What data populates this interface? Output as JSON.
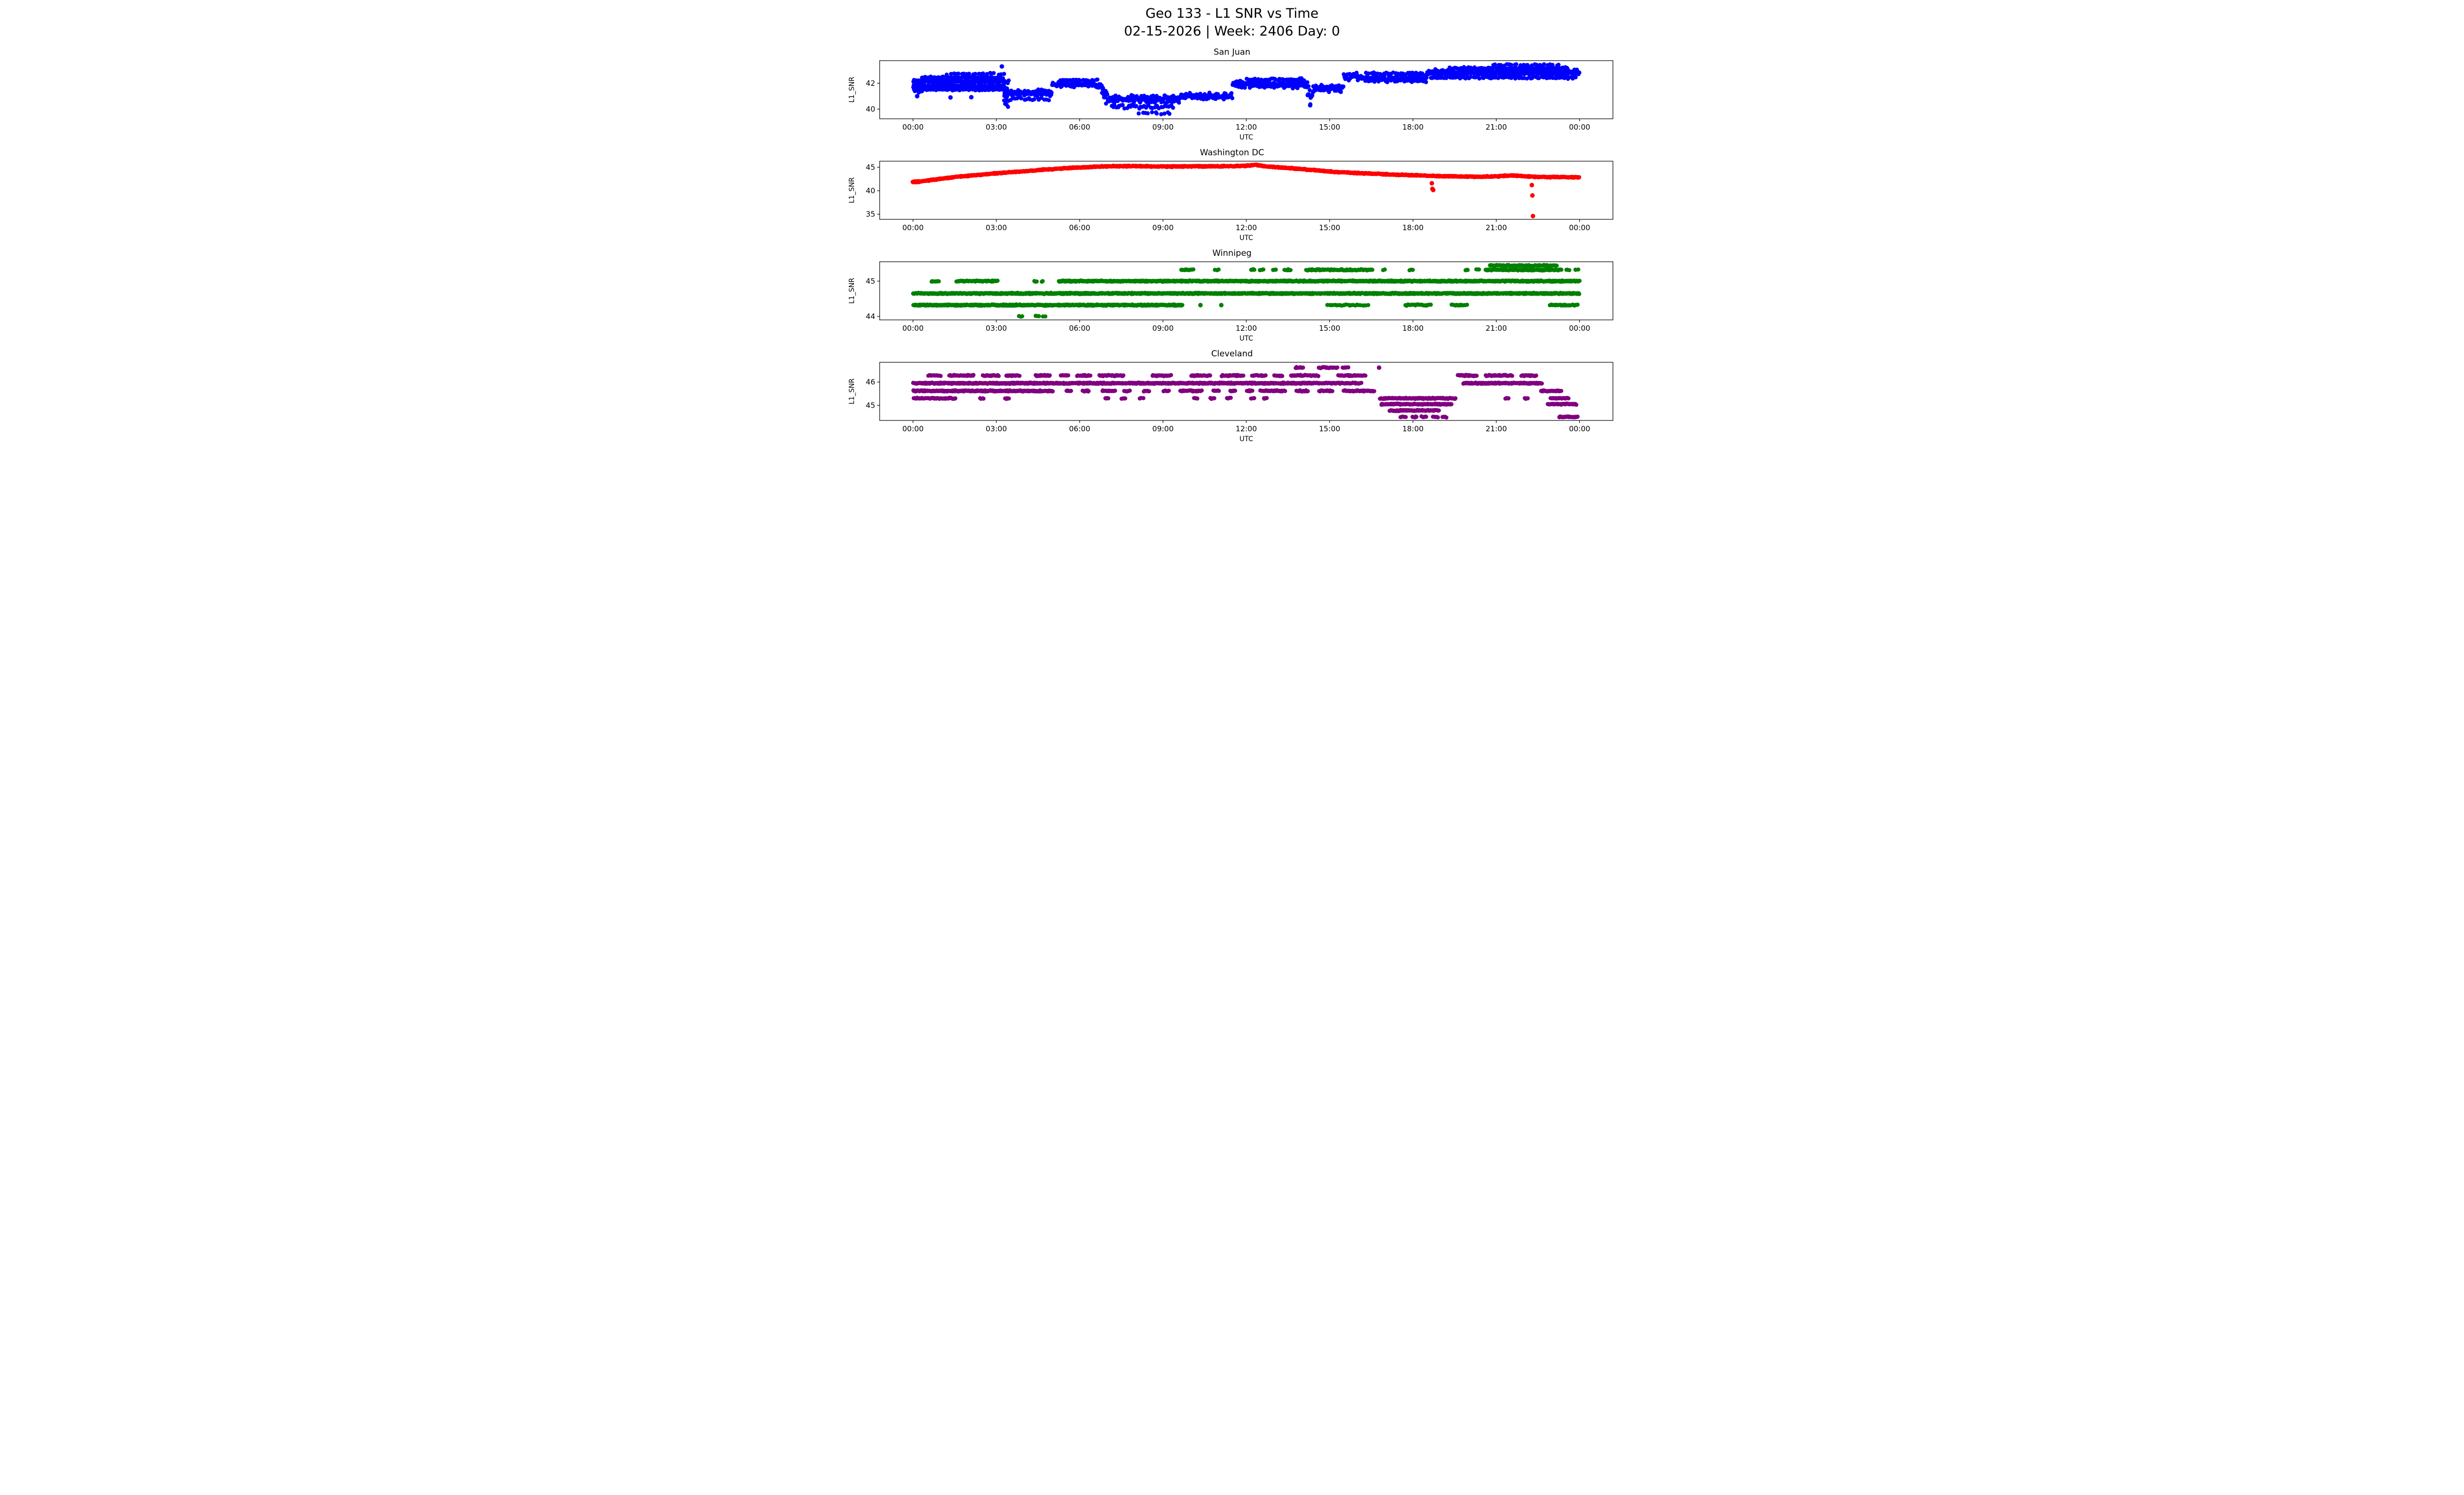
{
  "header": {
    "title_line1": "Geo 133 - L1 SNR vs Time",
    "title_line2": "02-15-2026 | Week: 2406 Day: 0"
  },
  "chart_data": [
    {
      "type": "scatter",
      "title": "San Juan",
      "color": "#0000ff",
      "xlabel": "UTC",
      "ylabel": "L1_SNR",
      "xlim": [
        -1.2,
        25.2
      ],
      "ylim": [
        39.25,
        43.75
      ],
      "x_tick_values": [
        0,
        3,
        6,
        9,
        12,
        15,
        18,
        21,
        24
      ],
      "x_tick_labels": [
        "00:00",
        "03:00",
        "06:00",
        "09:00",
        "12:00",
        "15:00",
        "18:00",
        "21:00",
        "00:00"
      ],
      "y_ticks": [
        40,
        42
      ],
      "grid": false,
      "legend": null,
      "segments": [
        [
          0,
          3.3,
          42.15,
          0.13,
          60
        ],
        [
          0,
          3.3,
          41.78,
          0.12,
          45
        ],
        [
          0,
          3.3,
          41.52,
          0.08,
          22
        ],
        [
          0.3,
          3.25,
          42.45,
          0.09,
          18
        ],
        [
          1.2,
          3.3,
          42.72,
          0.1,
          10
        ],
        [
          0.05,
          0.35,
          41.3,
          0.2,
          12
        ],
        [
          3.28,
          3.45,
          41.0,
          1.55,
          140
        ],
        [
          3.45,
          5.0,
          41.25,
          0.28,
          55
        ],
        [
          3.5,
          4.9,
          40.78,
          0.13,
          13
        ],
        [
          5.0,
          6.8,
          41.9,
          0.25,
          55
        ],
        [
          5.3,
          6.7,
          42.22,
          0.09,
          13
        ],
        [
          6.8,
          7.0,
          41.0,
          0.8,
          60
        ],
        [
          7.0,
          9.6,
          40.75,
          0.35,
          60
        ],
        [
          7.1,
          9.4,
          40.2,
          0.18,
          16
        ],
        [
          8.1,
          9.3,
          39.66,
          0.14,
          9
        ],
        [
          9.6,
          11.5,
          41.0,
          0.3,
          55
        ],
        [
          11.5,
          14.2,
          41.9,
          0.35,
          58
        ],
        [
          12.0,
          14.1,
          42.3,
          0.1,
          15
        ],
        [
          14.2,
          14.4,
          41.1,
          0.95,
          70
        ],
        [
          14.4,
          15.5,
          41.6,
          0.35,
          50
        ],
        [
          15.5,
          16.2,
          42.5,
          0.45,
          45
        ],
        [
          16.2,
          18.5,
          42.35,
          0.3,
          58
        ],
        [
          16.3,
          18.4,
          42.75,
          0.1,
          13
        ],
        [
          18.5,
          24,
          42.82,
          0.3,
          62
        ],
        [
          19.3,
          23.6,
          43.15,
          0.1,
          20
        ],
        [
          20.8,
          23.3,
          43.42,
          0.07,
          10
        ],
        [
          18.6,
          23.9,
          42.42,
          0.09,
          13
        ]
      ],
      "outliers": [
        [
          0.15,
          41.0
        ],
        [
          1.35,
          40.9
        ],
        [
          2.1,
          40.92
        ],
        [
          3.2,
          43.3
        ],
        [
          14.3,
          40.3
        ]
      ]
    },
    {
      "type": "scatter",
      "title": "Washington DC",
      "color": "#ff0000",
      "xlabel": "UTC",
      "ylabel": "L1_SNR",
      "xlim": [
        -1.2,
        25.2
      ],
      "ylim": [
        33.9,
        46.3
      ],
      "x_tick_values": [
        0,
        3,
        6,
        9,
        12,
        15,
        18,
        21,
        24
      ],
      "x_tick_labels": [
        "00:00",
        "03:00",
        "06:00",
        "09:00",
        "12:00",
        "15:00",
        "18:00",
        "21:00",
        "00:00"
      ],
      "y_ticks": [
        35,
        40,
        45
      ],
      "grid": false,
      "legend": null,
      "curve": [
        [
          0,
          41.85
        ],
        [
          0.3,
          42.0
        ],
        [
          0.7,
          42.3
        ],
        [
          1.0,
          42.55
        ],
        [
          1.5,
          42.9
        ],
        [
          2.0,
          43.2
        ],
        [
          2.5,
          43.45
        ],
        [
          3.0,
          43.7
        ],
        [
          3.5,
          43.95
        ],
        [
          4.0,
          44.15
        ],
        [
          4.5,
          44.4
        ],
        [
          5.0,
          44.6
        ],
        [
          5.5,
          44.8
        ],
        [
          6.0,
          44.95
        ],
        [
          6.5,
          45.1
        ],
        [
          7.0,
          45.2
        ],
        [
          7.5,
          45.25
        ],
        [
          8.0,
          45.25
        ],
        [
          8.5,
          45.2
        ],
        [
          9.0,
          45.15
        ],
        [
          9.5,
          45.15
        ],
        [
          10.0,
          45.2
        ],
        [
          10.5,
          45.2
        ],
        [
          11.0,
          45.2
        ],
        [
          11.5,
          45.25
        ],
        [
          12.0,
          45.3
        ],
        [
          12.2,
          45.45
        ],
        [
          12.35,
          45.55
        ],
        [
          12.5,
          45.35
        ],
        [
          12.8,
          45.15
        ],
        [
          13.0,
          45.05
        ],
        [
          13.5,
          44.85
        ],
        [
          14.0,
          44.6
        ],
        [
          14.5,
          44.35
        ],
        [
          15.0,
          44.1
        ],
        [
          15.5,
          43.9
        ],
        [
          16.0,
          43.75
        ],
        [
          16.5,
          43.65
        ],
        [
          17.0,
          43.5
        ],
        [
          17.5,
          43.4
        ],
        [
          18.0,
          43.3
        ],
        [
          18.5,
          43.2
        ],
        [
          19.0,
          43.1
        ],
        [
          19.5,
          43.05
        ],
        [
          20.0,
          43.0
        ],
        [
          20.5,
          43.0
        ],
        [
          21.0,
          43.05
        ],
        [
          21.3,
          43.2
        ],
        [
          21.6,
          43.25
        ],
        [
          22.0,
          43.1
        ],
        [
          22.5,
          42.95
        ],
        [
          23.0,
          42.9
        ],
        [
          23.5,
          42.9
        ],
        [
          24.0,
          42.85
        ]
      ],
      "curve_spread": 0.13,
      "curve_step": 0.03,
      "curve_passes": 2,
      "segments": [
        [
          0,
          0.25,
          41.9,
          0.18,
          90
        ]
      ],
      "outliers": [
        [
          18.68,
          41.6
        ],
        [
          18.7,
          40.4
        ],
        [
          18.73,
          40.15
        ],
        [
          22.28,
          41.2
        ],
        [
          22.3,
          39.0
        ],
        [
          22.32,
          34.6
        ]
      ]
    },
    {
      "type": "scatter",
      "title": "Winnipeg",
      "color": "#008000",
      "xlabel": "UTC",
      "ylabel": "L1_SNR",
      "xlim": [
        -1.2,
        25.2
      ],
      "ylim": [
        43.9,
        45.55
      ],
      "x_tick_values": [
        0,
        3,
        6,
        9,
        12,
        15,
        18,
        21,
        24
      ],
      "x_tick_labels": [
        "00:00",
        "03:00",
        "06:00",
        "09:00",
        "12:00",
        "15:00",
        "18:00",
        "21:00",
        "00:00"
      ],
      "y_ticks": [
        44,
        45
      ],
      "grid": false,
      "legend": null,
      "segments": [
        [
          0,
          24,
          44.65,
          0.02,
          55
        ],
        [
          0,
          9.7,
          44.32,
          0.02,
          55
        ],
        [
          14.9,
          16.4,
          44.32,
          0.02,
          16
        ],
        [
          17.7,
          18.65,
          44.32,
          0.02,
          22
        ],
        [
          19.35,
          19.95,
          44.32,
          0.02,
          22
        ],
        [
          22.9,
          23.95,
          44.32,
          0.02,
          26
        ],
        [
          0.65,
          0.95,
          45.0,
          0.02,
          30
        ],
        [
          1.55,
          3.05,
          45.0,
          0.02,
          32
        ],
        [
          4.35,
          4.5,
          45.0,
          0.02,
          20
        ],
        [
          4.6,
          4.72,
          45.0,
          0.02,
          20
        ],
        [
          5.25,
          24,
          45.0,
          0.02,
          55
        ],
        [
          9.65,
          10.1,
          45.32,
          0.02,
          30
        ],
        [
          10.85,
          11.05,
          45.32,
          0.02,
          22
        ],
        [
          12.15,
          12.32,
          45.32,
          0.02,
          22
        ],
        [
          12.45,
          12.62,
          45.32,
          0.02,
          22
        ],
        [
          12.95,
          13.08,
          45.32,
          0.02,
          22
        ],
        [
          13.35,
          13.62,
          45.32,
          0.02,
          22
        ],
        [
          14.15,
          16.55,
          45.32,
          0.02,
          34
        ],
        [
          16.9,
          17.02,
          45.32,
          0.02,
          20
        ],
        [
          17.85,
          18.0,
          45.32,
          0.02,
          20
        ],
        [
          19.85,
          20.0,
          45.32,
          0.02,
          20
        ],
        [
          20.25,
          20.42,
          45.32,
          0.02,
          20
        ],
        [
          20.6,
          23.35,
          45.32,
          0.02,
          45
        ],
        [
          20.75,
          23.2,
          45.44,
          0.02,
          30
        ],
        [
          23.5,
          23.66,
          45.32,
          0.02,
          20
        ],
        [
          23.8,
          23.96,
          45.32,
          0.02,
          20
        ],
        [
          3.8,
          3.96,
          44.0,
          0.02,
          20
        ],
        [
          4.4,
          4.56,
          44.0,
          0.02,
          20
        ],
        [
          4.65,
          4.8,
          44.0,
          0.02,
          16
        ]
      ],
      "outliers": [
        [
          10.35,
          44.32
        ],
        [
          11.1,
          44.32
        ]
      ]
    },
    {
      "type": "scatter",
      "title": "Cleveland",
      "color": "#800080",
      "xlabel": "UTC",
      "ylabel": "L1_SNR",
      "xlim": [
        -1.2,
        25.2
      ],
      "ylim": [
        44.35,
        46.85
      ],
      "x_tick_values": [
        0,
        3,
        6,
        9,
        12,
        15,
        18,
        21,
        24
      ],
      "x_tick_labels": [
        "00:00",
        "03:00",
        "06:00",
        "09:00",
        "12:00",
        "15:00",
        "18:00",
        "21:00",
        "00:00"
      ],
      "y_ticks": [
        45,
        46
      ],
      "grid": false,
      "legend": null,
      "segments": [
        [
          0,
          14.3,
          45.95,
          0.03,
          58
        ],
        [
          14.3,
          16.15,
          45.95,
          0.03,
          36
        ],
        [
          19.8,
          22.65,
          45.95,
          0.03,
          55
        ],
        [
          0,
          5.05,
          45.62,
          0.03,
          48
        ],
        [
          5.5,
          5.72,
          45.62,
          0.03,
          30
        ],
        [
          6.1,
          6.35,
          45.62,
          0.03,
          30
        ],
        [
          6.8,
          7.3,
          45.62,
          0.03,
          32
        ],
        [
          7.6,
          7.82,
          45.62,
          0.03,
          30
        ],
        [
          8.3,
          8.52,
          45.62,
          0.03,
          30
        ],
        [
          9.0,
          9.22,
          45.62,
          0.03,
          30
        ],
        [
          9.6,
          10.4,
          45.62,
          0.03,
          34
        ],
        [
          10.8,
          11.02,
          45.62,
          0.03,
          30
        ],
        [
          11.4,
          11.62,
          45.62,
          0.03,
          30
        ],
        [
          12.0,
          12.22,
          45.62,
          0.03,
          30
        ],
        [
          12.5,
          13.4,
          45.62,
          0.03,
          34
        ],
        [
          13.8,
          14.22,
          45.62,
          0.03,
          32
        ],
        [
          14.6,
          15.12,
          45.62,
          0.03,
          32
        ],
        [
          15.5,
          16.62,
          45.62,
          0.03,
          34
        ],
        [
          22.6,
          23.35,
          45.62,
          0.03,
          40
        ],
        [
          0,
          1.55,
          45.3,
          0.03,
          26
        ],
        [
          2.4,
          2.56,
          45.3,
          0.03,
          22
        ],
        [
          3.3,
          3.46,
          45.3,
          0.03,
          22
        ],
        [
          6.9,
          7.06,
          45.3,
          0.03,
          22
        ],
        [
          7.5,
          7.66,
          45.3,
          0.03,
          22
        ],
        [
          8.15,
          8.3,
          45.3,
          0.03,
          22
        ],
        [
          10.1,
          10.26,
          45.3,
          0.03,
          22
        ],
        [
          10.7,
          10.86,
          45.3,
          0.03,
          22
        ],
        [
          11.3,
          11.46,
          45.3,
          0.03,
          22
        ],
        [
          12.15,
          12.3,
          45.3,
          0.03,
          22
        ],
        [
          12.6,
          12.76,
          45.3,
          0.03,
          22
        ],
        [
          16.8,
          19.55,
          45.3,
          0.03,
          42
        ],
        [
          21.3,
          21.46,
          45.3,
          0.03,
          22
        ],
        [
          22.0,
          22.16,
          45.3,
          0.03,
          22
        ],
        [
          22.95,
          23.6,
          45.3,
          0.03,
          34
        ],
        [
          0.55,
          1.0,
          46.28,
          0.03,
          34
        ],
        [
          1.3,
          2.2,
          46.28,
          0.03,
          36
        ],
        [
          2.5,
          3.1,
          46.28,
          0.03,
          34
        ],
        [
          3.35,
          3.85,
          46.28,
          0.03,
          34
        ],
        [
          4.4,
          4.95,
          46.28,
          0.03,
          34
        ],
        [
          5.3,
          5.6,
          46.28,
          0.03,
          32
        ],
        [
          5.9,
          6.4,
          46.28,
          0.03,
          32
        ],
        [
          6.7,
          7.6,
          46.28,
          0.03,
          34
        ],
        [
          8.6,
          9.3,
          46.28,
          0.03,
          34
        ],
        [
          10.0,
          10.7,
          46.28,
          0.03,
          34
        ],
        [
          11.1,
          11.9,
          46.28,
          0.03,
          34
        ],
        [
          12.2,
          12.7,
          46.28,
          0.03,
          32
        ],
        [
          13.0,
          13.3,
          46.28,
          0.03,
          32
        ],
        [
          13.6,
          14.6,
          46.28,
          0.03,
          34
        ],
        [
          15.3,
          16.3,
          46.28,
          0.03,
          34
        ],
        [
          19.6,
          20.3,
          46.28,
          0.03,
          34
        ],
        [
          20.6,
          21.6,
          46.28,
          0.03,
          34
        ],
        [
          21.9,
          22.45,
          46.28,
          0.03,
          32
        ],
        [
          13.75,
          14.05,
          46.62,
          0.03,
          30
        ],
        [
          14.6,
          15.3,
          46.62,
          0.03,
          32
        ],
        [
          15.45,
          15.68,
          46.62,
          0.03,
          28
        ],
        [
          16.85,
          19.4,
          45.05,
          0.03,
          42
        ],
        [
          17.15,
          18.95,
          44.78,
          0.03,
          36
        ],
        [
          17.55,
          17.76,
          44.5,
          0.03,
          24
        ],
        [
          17.95,
          18.16,
          44.5,
          0.03,
          24
        ],
        [
          18.3,
          18.5,
          44.5,
          0.03,
          24
        ],
        [
          18.7,
          18.9,
          44.5,
          0.03,
          24
        ],
        [
          19.05,
          19.22,
          44.5,
          0.03,
          22
        ],
        [
          22.85,
          23.9,
          45.05,
          0.03,
          40
        ],
        [
          23.25,
          23.95,
          44.5,
          0.03,
          36
        ]
      ],
      "outliers": [
        [
          16.78,
          46.62
        ]
      ]
    }
  ]
}
